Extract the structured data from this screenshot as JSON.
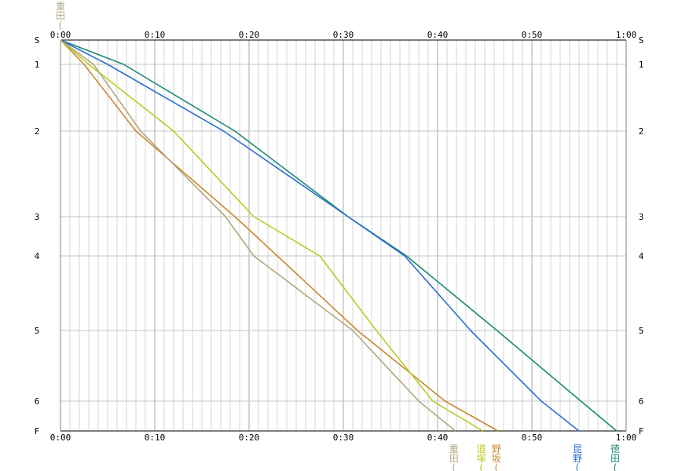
{
  "chart_data": {
    "type": "line",
    "x_unit": "minutes",
    "xlim": [
      0,
      60
    ],
    "x_ticks": [
      "0:00",
      "0:10",
      "0:20",
      "0:30",
      "0:40",
      "0:50",
      "1:00"
    ],
    "y_ticks": [
      "S",
      "1",
      "2",
      "3",
      "4",
      "5",
      "6",
      "F"
    ],
    "ylim": [
      0,
      7
    ],
    "grid": true,
    "series": [
      {
        "name": "徳田(",
        "color": "#1a8a78",
        "x": [
          0,
          6.7,
          18.5,
          30.5,
          36.7,
          46.3,
          55.2,
          59.0
        ],
        "y": [
          0,
          1,
          2,
          3,
          4,
          5,
          6,
          7
        ]
      },
      {
        "name": "昆野(",
        "color": "#2a6fd0",
        "x": [
          0,
          5.0,
          17.3,
          30.5,
          36.5,
          43.5,
          51.0,
          55.0
        ],
        "y": [
          0,
          1,
          2,
          3,
          4,
          5,
          6,
          7
        ]
      },
      {
        "name": "野坂(",
        "color": "#c88a30",
        "x": [
          0,
          2.5,
          8.0,
          18.5,
          23.0,
          31.5,
          40.8,
          46.4
        ],
        "y": [
          0,
          1,
          2,
          3,
          4,
          5,
          6,
          7
        ]
      },
      {
        "name": "道塚(",
        "color": "#b8cc20",
        "x": [
          0,
          3.0,
          12.0,
          20.5,
          27.5,
          33.5,
          39.5,
          44.8
        ],
        "y": [
          0,
          1,
          2,
          3,
          4,
          5,
          6,
          7
        ]
      },
      {
        "name": "重田(",
        "color": "#b0a880",
        "x": [
          0,
          3.5,
          8.5,
          17.5,
          20.5,
          31.0,
          38.0,
          41.9
        ],
        "y": [
          0,
          1,
          2,
          3,
          4,
          5,
          6,
          7
        ]
      }
    ],
    "stacked_top_label": "重田("
  }
}
